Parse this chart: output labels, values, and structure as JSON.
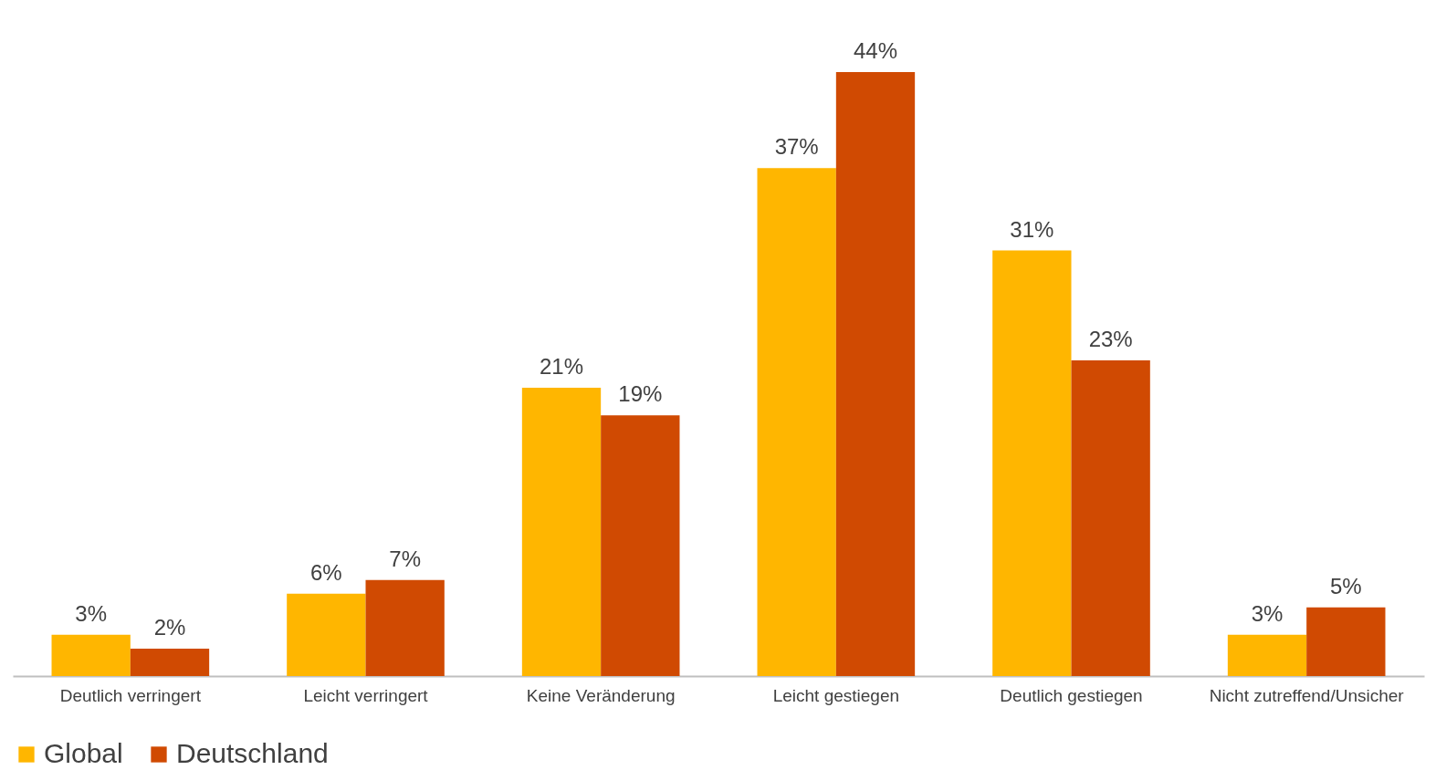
{
  "chart_data": {
    "type": "bar",
    "categories": [
      "Deutlich verringert",
      "Leicht verringert",
      "Keine Veränderung",
      "Leicht gestiegen",
      "Deutlich gestiegen",
      "Nicht zutreffend/Unsicher"
    ],
    "series": [
      {
        "name": "Global",
        "color": "#ffb600",
        "values": [
          3,
          6,
          21,
          37,
          31,
          3
        ],
        "value_labels": [
          "3%",
          "6%",
          "21%",
          "37%",
          "31%",
          "3%"
        ]
      },
      {
        "name": "Deutschland",
        "color": "#d04a02",
        "values": [
          2,
          7,
          19,
          44,
          23,
          5
        ],
        "value_labels": [
          "2%",
          "7%",
          "19%",
          "44%",
          "23%",
          "5%"
        ]
      }
    ],
    "legend": "bottom"
  }
}
